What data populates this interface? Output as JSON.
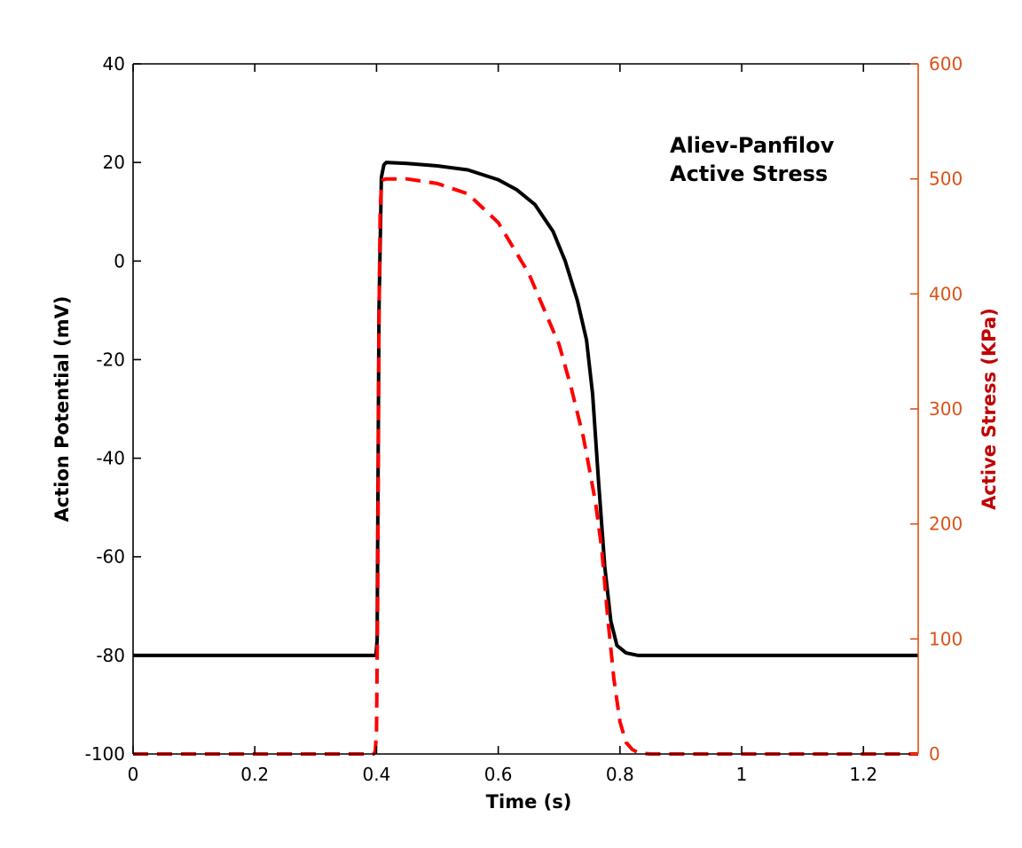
{
  "chart_data": {
    "type": "line",
    "title": "",
    "annotation_lines": [
      "Aliev-Panfilov",
      "Active Stress"
    ],
    "xlabel": "Time (s)",
    "ylabel_left": "Action Potential (mV)",
    "ylabel_right": "Active Stress (KPa)",
    "xlim": [
      0,
      1.29
    ],
    "ylim_left": [
      -100,
      40
    ],
    "ylim_right": [
      0,
      600
    ],
    "x_ticks": [
      0,
      0.2,
      0.4,
      0.6,
      0.8,
      1,
      1.2
    ],
    "x_tick_labels": [
      "0",
      "0.2",
      "0.4",
      "0.6",
      "0.8",
      "1",
      "1.2"
    ],
    "y_left_ticks": [
      -100,
      -80,
      -60,
      -40,
      -20,
      0,
      20,
      40
    ],
    "y_left_tick_labels": [
      "-100",
      "-80",
      "-60",
      "-40",
      "-20",
      "0",
      "20",
      "40"
    ],
    "y_right_ticks": [
      0,
      100,
      200,
      300,
      400,
      500,
      600
    ],
    "y_right_tick_labels": [
      "0",
      "100",
      "200",
      "300",
      "400",
      "500",
      "600"
    ],
    "grid": false,
    "colors": {
      "axis_left": "#000000",
      "axis_right": "#d95319",
      "ylabel_right": "#c00000"
    },
    "series": [
      {
        "axis": "left",
        "color": "#000000",
        "style": "solid",
        "x": [
          0,
          0.395,
          0.399,
          0.401,
          0.404,
          0.408,
          0.412,
          0.416,
          0.45,
          0.5,
          0.55,
          0.6,
          0.63,
          0.66,
          0.69,
          0.71,
          0.73,
          0.745,
          0.755,
          0.765,
          0.775,
          0.785,
          0.795,
          0.81,
          0.83,
          0.9,
          1.29
        ],
        "values": [
          -80,
          -80,
          -80,
          -77,
          -10,
          17,
          19.5,
          20,
          19.8,
          19.3,
          18.5,
          16.5,
          14.5,
          11.5,
          6,
          0,
          -8,
          -16,
          -27,
          -45,
          -62,
          -73,
          -78,
          -79.5,
          -80,
          -80,
          -80
        ]
      },
      {
        "axis": "right",
        "color": "#ff0000",
        "style": "dashed",
        "x": [
          0,
          0.395,
          0.398,
          0.4,
          0.402,
          0.404,
          0.406,
          0.408,
          0.41,
          0.415,
          0.45,
          0.5,
          0.55,
          0.6,
          0.65,
          0.7,
          0.72,
          0.74,
          0.75,
          0.76,
          0.77,
          0.78,
          0.79,
          0.8,
          0.81,
          0.82,
          0.83,
          0.85,
          0.9,
          1.29
        ],
        "values": [
          0,
          0,
          2,
          20,
          140,
          380,
          470,
          495,
          499,
          500,
          500,
          496,
          487,
          462,
          418,
          356,
          318,
          275,
          247,
          218,
          178,
          118,
          65,
          28,
          10,
          4,
          1,
          0,
          0,
          0
        ]
      }
    ]
  }
}
